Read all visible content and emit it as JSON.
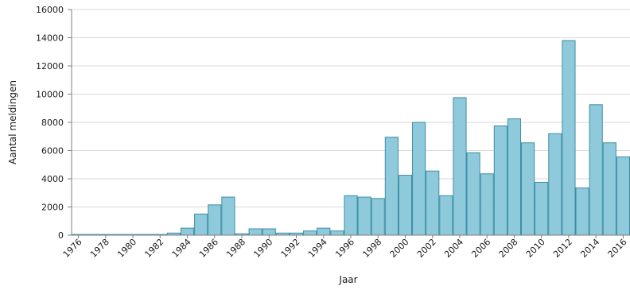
{
  "chart_data": {
    "type": "bar",
    "xlabel": "Jaar",
    "ylabel": "Aantal meldingen",
    "ylim": [
      0,
      16000
    ],
    "yticks": [
      0,
      2000,
      4000,
      6000,
      8000,
      10000,
      12000,
      14000,
      16000
    ],
    "ytick_labels": [
      "0",
      "2000",
      "4000",
      "6000",
      "8000",
      "10000",
      "12000",
      "14000",
      "16000"
    ],
    "grid": "horizontal",
    "categories": [
      "1976",
      "1977",
      "1978",
      "1979",
      "1980",
      "1981",
      "1982",
      "1983",
      "1984",
      "1985",
      "1986",
      "1987",
      "1988",
      "1989",
      "1990",
      "1991",
      "1992",
      "1993",
      "1994",
      "1995",
      "1996",
      "1997",
      "1998",
      "1999",
      "2000",
      "2001",
      "2002",
      "2003",
      "2004",
      "2005",
      "2006",
      "2007",
      "2008",
      "2009",
      "2010",
      "2011",
      "2012",
      "2013",
      "2014",
      "2015",
      "2016"
    ],
    "values": [
      50,
      50,
      50,
      50,
      50,
      50,
      50,
      150,
      500,
      1500,
      2150,
      2700,
      100,
      450,
      450,
      150,
      150,
      300,
      500,
      300,
      2800,
      2700,
      2600,
      6950,
      4250,
      8000,
      4550,
      2800,
      9750,
      5850,
      4350,
      7750,
      8250,
      6550,
      3750,
      7200,
      13800,
      3350,
      9250,
      6550,
      5550
    ],
    "xtick_labels": [
      "1976",
      "1978",
      "1980",
      "1982",
      "1984",
      "1986",
      "1988",
      "1990",
      "1992",
      "1994",
      "1996",
      "1998",
      "2000",
      "2002",
      "2004",
      "2006",
      "2008",
      "2010",
      "2012",
      "2014",
      "2016"
    ],
    "colors": {
      "bar_fill": "#8ecadb",
      "bar_stroke": "#3d8da5",
      "grid": "#d9d9d9",
      "axis": "#7f7f7f"
    }
  }
}
